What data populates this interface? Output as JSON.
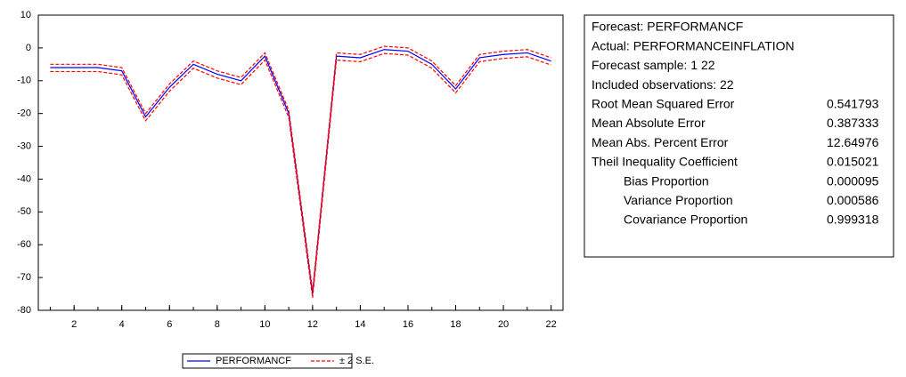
{
  "chart_data": {
    "type": "line",
    "x": [
      1,
      2,
      3,
      4,
      5,
      6,
      7,
      8,
      9,
      10,
      11,
      12,
      13,
      14,
      15,
      16,
      17,
      18,
      19,
      20,
      21,
      22
    ],
    "series": [
      {
        "name": "PERFORMANCF",
        "color": "#0000ff",
        "values": [
          -6,
          -6,
          -6,
          -7,
          -21,
          -12,
          -5,
          -8,
          -10,
          -2.5,
          -20,
          -75,
          -2.5,
          -3,
          -0.5,
          -1,
          -5,
          -12.5,
          -3,
          -2,
          -1.5,
          -4
        ]
      },
      {
        "name": "± 2 S.E.",
        "color": "#ff0000",
        "dash": true,
        "upper": [
          -5,
          -5,
          -5,
          -6,
          -20,
          -11,
          -4,
          -7,
          -9,
          -1.5,
          -19,
          -74,
          -1.5,
          -2,
          0.5,
          0,
          -4,
          -11.5,
          -2,
          -1,
          -0.5,
          -3
        ],
        "lower": [
          -7.2,
          -7.2,
          -7.2,
          -8.2,
          -22.2,
          -13.2,
          -6.2,
          -9.2,
          -11.2,
          -3.7,
          -21.2,
          -76.2,
          -3.7,
          -4.2,
          -1.7,
          -2.2,
          -6.2,
          -13.7,
          -4.2,
          -3.2,
          -2.7,
          -5.2
        ]
      }
    ],
    "xlim": [
      0.5,
      22.5
    ],
    "xticks": [
      2,
      4,
      6,
      8,
      10,
      12,
      14,
      16,
      18,
      20,
      22
    ],
    "xminorticks": [
      1,
      2,
      3,
      4,
      5,
      6,
      7,
      8,
      9,
      10,
      11,
      12,
      13,
      14,
      15,
      16,
      17,
      18,
      19,
      20,
      21,
      22
    ],
    "ylim": [
      -80,
      10
    ],
    "yticks": [
      10,
      0,
      -10,
      -20,
      -30,
      -40,
      -50,
      -60,
      -70,
      -80
    ]
  },
  "stats": {
    "header": [
      "Forecast: PERFORMANCF",
      "Actual: PERFORMANCEINFLATION",
      "Forecast sample: 1 22",
      "Included observations: 22"
    ],
    "rows": [
      {
        "label": "Root Mean Squared Error",
        "value": "0.541793"
      },
      {
        "label": "Mean Absolute Error",
        "value": "0.387333"
      },
      {
        "label": "Mean Abs. Percent Error",
        "value": "12.64976"
      },
      {
        "label": "Theil Inequality Coefficient",
        "value": "0.015021"
      },
      {
        "label": "Bias Proportion",
        "value": "0.000095",
        "indent": true
      },
      {
        "label": "Variance Proportion",
        "value": "0.000586",
        "indent": true
      },
      {
        "label": "Covariance Proportion",
        "value": "0.999318",
        "indent": true
      }
    ]
  }
}
